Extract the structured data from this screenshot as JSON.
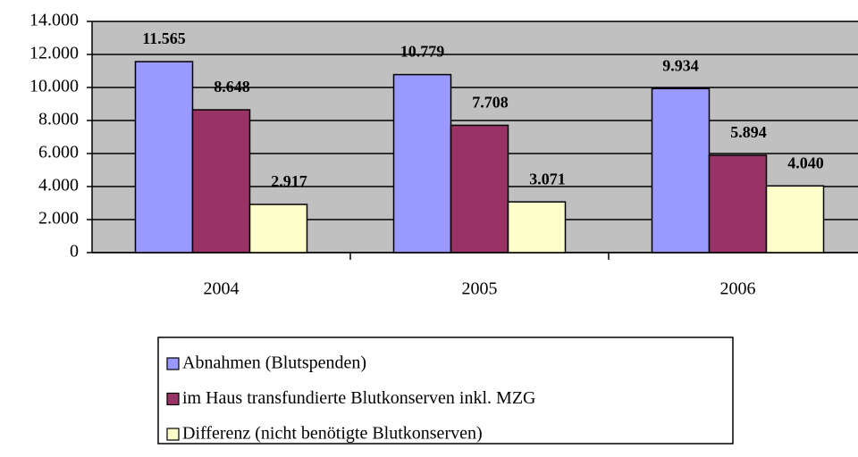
{
  "chart_data": {
    "type": "bar",
    "categories": [
      "2004",
      "2005",
      "2006"
    ],
    "series": [
      {
        "name": "Abnahmen (Blutspenden)",
        "color": "#9999ff",
        "values": [
          11565,
          10779,
          9934
        ],
        "value_labels": [
          "11.565",
          "10.779",
          "9.934"
        ]
      },
      {
        "name": "im Haus transfundierte Blutkonserven inkl. MZG",
        "color": "#993366",
        "values": [
          8648,
          7708,
          5894
        ],
        "value_labels": [
          "8.648",
          "7.708",
          "5.894"
        ]
      },
      {
        "name": "Differenz (nicht benötigte Blutkonserven)",
        "color": "#ffffcc",
        "values": [
          2917,
          3071,
          4040
        ],
        "value_labels": [
          "2.917",
          "3.071",
          "4.040"
        ]
      }
    ],
    "ylim": [
      0,
      14000
    ],
    "yticks": [
      0,
      {
        "value": 2000,
        "label": "2.000"
      },
      {
        "value": 4000,
        "label": "4.000"
      },
      {
        "value": 6000,
        "label": "6.000"
      },
      {
        "value": 8000,
        "label": "8.000"
      },
      {
        "value": 10000,
        "label": "10.000"
      },
      {
        "value": 12000,
        "label": "12.000"
      },
      {
        "value": 14000,
        "label": "14.000"
      }
    ],
    "grid": true,
    "legend": "bottom"
  }
}
